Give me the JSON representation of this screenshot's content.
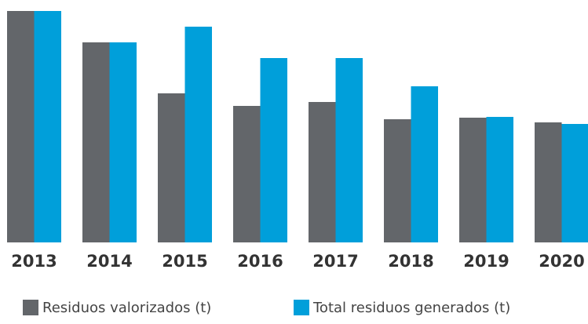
{
  "chart_data": {
    "type": "bar",
    "categories": [
      "2013",
      "2014",
      "2015",
      "2016",
      "2017",
      "2018",
      "2019",
      "2020"
    ],
    "series": [
      {
        "name": "Residuos valorizados (t)",
        "color": "#63666a",
        "values": [
          295,
          255,
          190,
          174,
          179,
          157,
          159,
          153
        ]
      },
      {
        "name": "Total residuos generados (t)",
        "color": "#009fda",
        "values": [
          295,
          255,
          275,
          235,
          235,
          199,
          160,
          151
        ]
      }
    ],
    "ylim": [
      0,
      300
    ]
  }
}
